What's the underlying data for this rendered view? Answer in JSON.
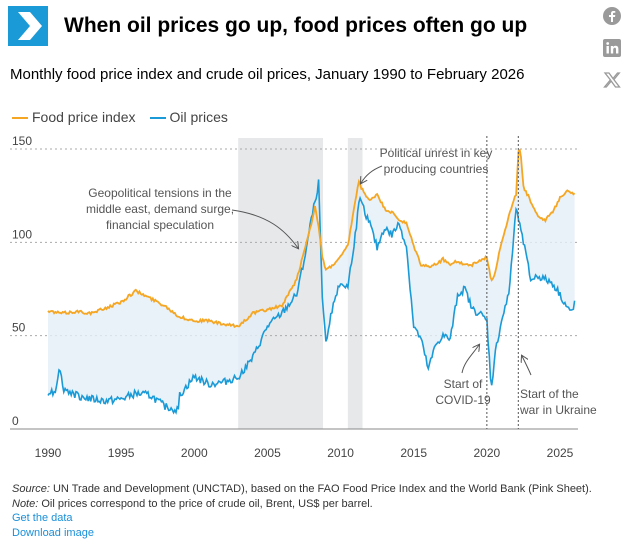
{
  "header": {
    "title": "When oil prices go up, food prices often go up",
    "subtitle": "Monthly food price index and crude oil prices, January 1990 to February 2026"
  },
  "share": {
    "icons": [
      "facebook-icon",
      "linkedin-icon",
      "x-icon"
    ]
  },
  "colors": {
    "food": "#f5a623",
    "oil": "#1a9ad6",
    "fill": "#e3eef7",
    "shade": "#e6e8ea",
    "logo": "#1a9ad6"
  },
  "chart_data": {
    "type": "line",
    "title": "Monthly food price index and crude oil prices, January 1990 to February 2026",
    "xlabel": "",
    "ylabel": "",
    "xlim": [
      1989.5,
      2026.5
    ],
    "ylim": [
      0,
      160
    ],
    "yticks": [
      0,
      50,
      100,
      150
    ],
    "xticks": [
      1990,
      1995,
      2000,
      2005,
      2010,
      2015,
      2020,
      2025
    ],
    "series": [
      {
        "name": "Food price index",
        "x": [
          1990,
          1991,
          1992,
          1993,
          1994,
          1995,
          1996,
          1997,
          1998,
          1999,
          2000,
          2001,
          2002,
          2003,
          2004,
          2005,
          2006,
          2007,
          2007.5,
          2008,
          2008.25,
          2008.5,
          2008.75,
          2009,
          2009.5,
          2010,
          2010.5,
          2011,
          2011.25,
          2011.5,
          2012,
          2012.5,
          2013,
          2013.5,
          2014,
          2014.5,
          2015,
          2015.5,
          2016,
          2016.5,
          2017,
          2017.5,
          2018,
          2018.5,
          2019,
          2019.5,
          2020,
          2020.3,
          2020.5,
          2021,
          2021.5,
          2022,
          2022.17,
          2022.3,
          2022.5,
          2023,
          2023.5,
          2024,
          2024.5,
          2025,
          2025.5,
          2026
        ],
        "values": [
          63,
          62,
          63,
          62,
          65,
          68,
          74,
          70,
          66,
          60,
          58,
          58,
          56,
          55,
          62,
          64,
          66,
          80,
          95,
          110,
          120,
          108,
          92,
          85,
          88,
          92,
          98,
          122,
          132,
          128,
          122,
          126,
          118,
          116,
          112,
          110,
          98,
          88,
          87,
          88,
          91,
          88,
          90,
          88,
          88,
          90,
          92,
          80,
          82,
          100,
          114,
          126,
          150,
          148,
          130,
          122,
          114,
          112,
          116,
          124,
          128,
          126
        ]
      },
      {
        "name": "Oil prices",
        "x": [
          1990,
          1990.5,
          1990.8,
          1991,
          1992,
          1993,
          1994,
          1995,
          1996,
          1997,
          1998,
          1998.9,
          1999,
          2000,
          2001,
          2002,
          2003,
          2004,
          2005,
          2006,
          2007,
          2007.5,
          2008,
          2008.5,
          2008.75,
          2009,
          2009.5,
          2010,
          2010.5,
          2011,
          2011.3,
          2012,
          2012.5,
          2013,
          2013.5,
          2014,
          2014.5,
          2015,
          2015.5,
          2016,
          2016.5,
          2017,
          2017.5,
          2018,
          2018.5,
          2019,
          2019.5,
          2020,
          2020.3,
          2020.6,
          2021,
          2021.5,
          2022,
          2022.3,
          2022.5,
          2023,
          2023.5,
          2024,
          2024.5,
          2025,
          2025.5,
          2025.9,
          2026
        ],
        "values": [
          20,
          20,
          35,
          22,
          18,
          16,
          15,
          16,
          19,
          18,
          12,
          10,
          18,
          28,
          24,
          25,
          28,
          38,
          55,
          62,
          72,
          90,
          112,
          132,
          70,
          45,
          68,
          78,
          76,
          104,
          123,
          110,
          97,
          108,
          104,
          110,
          98,
          55,
          48,
          32,
          45,
          50,
          48,
          72,
          75,
          64,
          62,
          58,
          22,
          42,
          58,
          72,
          118,
          110,
          100,
          80,
          82,
          80,
          78,
          72,
          65,
          62,
          68
        ]
      }
    ],
    "shaded_periods": [
      [
        2003,
        2008.8
      ],
      [
        2010.5,
        2011.5
      ]
    ],
    "vlines": [
      2020.0,
      2022.15
    ],
    "annotations": [
      {
        "lines": [
          "Geopolitical tensions in the",
          "middle east, demand surge,",
          "financial speculation"
        ]
      },
      {
        "lines": [
          "Political unrest in key",
          "producing countries"
        ]
      },
      {
        "lines": [
          "Start of",
          "COVID-19"
        ]
      },
      {
        "lines": [
          "Start of the",
          "war in Ukraine"
        ]
      }
    ]
  },
  "legend": {
    "food": "Food price index",
    "oil": "Oil prices"
  },
  "footer": {
    "source_label": "Source:",
    "source_text": " UN Trade and Development (UNCTAD), based on the FAO Food Price Index and the World Bank (Pink Sheet).",
    "note_label": "Note:",
    "note_text": " Oil prices correspond to the price of crude oil, Brent, US$ per barrel.",
    "link_data": "Get the data",
    "link_image": "Download image"
  }
}
